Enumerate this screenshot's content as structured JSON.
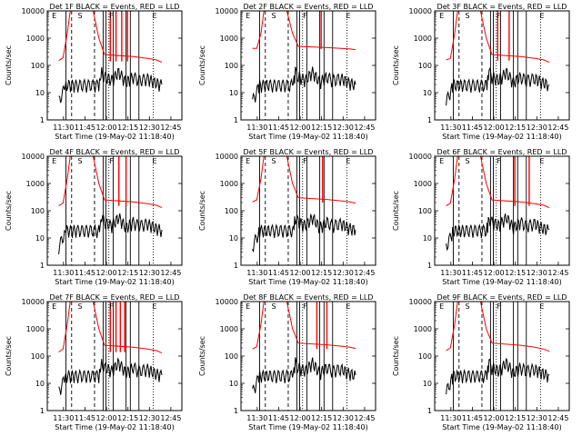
{
  "chart_data": [
    {
      "type": "line",
      "title": "Det 1F BLACK = Events, RED = LLD",
      "xlabel": "Start Time (19-May-02 11:18:40)",
      "ylabel": "Counts/sec",
      "yscale": "log",
      "ylim": [
        1,
        10000
      ],
      "ytick_labels": [
        "1",
        "10",
        "100",
        "1000",
        "10000"
      ],
      "xtick_labels": [
        "11:30",
        "11:45",
        "12:00",
        "12:15",
        "12:30",
        "12:45"
      ],
      "xlim_minutes": [
        0,
        94
      ],
      "annotations": [
        "E",
        "S",
        "F",
        "E"
      ],
      "series": [
        {
          "color": "#000000",
          "baseline": 20,
          "x": [
            8,
            12,
            13,
            20,
            36,
            37,
            38,
            40,
            45,
            50,
            55,
            60,
            64,
            70,
            75,
            80
          ],
          "values": [
            5,
            15,
            20,
            20,
            20,
            30,
            60,
            40,
            30,
            60,
            25,
            40,
            30,
            35,
            25,
            20
          ]
        },
        {
          "color": "#ff0000",
          "baseline": 140,
          "x": [
            8,
            11,
            14,
            16,
            18,
            25,
            32,
            36,
            40,
            60,
            70,
            76,
            80
          ],
          "values": [
            150,
            190,
            1500,
            10000,
            10000,
            10000,
            10000,
            1000,
            250,
            210,
            180,
            160,
            130
          ]
        }
      ],
      "red_spikes": [
        44,
        48,
        52,
        56
      ],
      "solid_lines": [
        13,
        39,
        41,
        46,
        55,
        58,
        64
      ],
      "dashed_lines": [
        17,
        33
      ],
      "dotted_lines": [
        43,
        74
      ]
    },
    {
      "type": "line",
      "title": "Det 2F BLACK = Events, RED = LLD",
      "xlabel": "Start Time (19-May-02 11:18:40)",
      "ylabel": "Counts/sec",
      "yscale": "log",
      "ylim": [
        1,
        10000
      ],
      "ytick_labels": [
        "1",
        "10",
        "100",
        "1000",
        "10000"
      ],
      "xtick_labels": [
        "11:30",
        "11:45",
        "12:00",
        "12:15",
        "12:30",
        "12:45"
      ],
      "xlim_minutes": [
        0,
        94
      ],
      "annotations": [
        "E",
        "S",
        "F",
        "E"
      ],
      "series": [
        {
          "color": "#000000",
          "baseline": 30,
          "x": [
            8,
            12,
            13,
            20,
            36,
            37,
            38,
            40,
            45,
            50,
            55,
            60,
            64,
            70,
            75,
            80
          ],
          "values": [
            5,
            15,
            20,
            20,
            20,
            30,
            60,
            40,
            30,
            60,
            25,
            40,
            30,
            35,
            25,
            20
          ]
        },
        {
          "color": "#ff0000",
          "baseline": 400,
          "x": [
            8,
            11,
            14,
            16,
            18,
            25,
            32,
            36,
            40,
            60,
            70,
            76,
            80
          ],
          "values": [
            420,
            420,
            1500,
            10000,
            10000,
            10000,
            10000,
            1500,
            500,
            450,
            420,
            400,
            380
          ]
        }
      ],
      "red_spikes": [
        56
      ],
      "solid_lines": [
        13,
        39,
        41,
        46,
        55,
        58,
        64
      ],
      "dashed_lines": [
        17,
        33
      ],
      "dotted_lines": [
        43,
        74
      ]
    },
    {
      "type": "line",
      "title": "Det 3F BLACK = Events, RED = LLD",
      "xlabel": "Start Time (19-May-02 11:18:40)",
      "ylabel": "Counts/sec",
      "yscale": "log",
      "ylim": [
        1,
        10000
      ],
      "ytick_labels": [
        "1",
        "10",
        "100",
        "1000",
        "10000"
      ],
      "xtick_labels": [
        "11:30",
        "11:45",
        "12:00",
        "12:15",
        "12:30",
        "12:45"
      ],
      "xlim_minutes": [
        0,
        94
      ],
      "annotations": [
        "E",
        "S",
        "F",
        "E"
      ],
      "series": [
        {
          "color": "#000000",
          "baseline": 30,
          "x": [
            8,
            12,
            13,
            20,
            36,
            37,
            38,
            40,
            45,
            50,
            55,
            60,
            64,
            70,
            75,
            80
          ],
          "values": [
            5,
            15,
            20,
            20,
            20,
            30,
            60,
            40,
            30,
            60,
            25,
            40,
            30,
            35,
            25,
            20
          ]
        },
        {
          "color": "#ff0000",
          "baseline": 150,
          "x": [
            8,
            11,
            14,
            16,
            18,
            25,
            32,
            36,
            40,
            60,
            70,
            76,
            80
          ],
          "values": [
            160,
            180,
            1500,
            10000,
            10000,
            10000,
            10000,
            1000,
            250,
            210,
            180,
            160,
            130
          ]
        }
      ],
      "red_spikes": [
        44,
        52
      ],
      "solid_lines": [
        13,
        39,
        41,
        46,
        55,
        58,
        64
      ],
      "dashed_lines": [
        17,
        33
      ],
      "dotted_lines": [
        43,
        74
      ]
    },
    {
      "type": "line",
      "title": "Det 4F BLACK = Events, RED = LLD",
      "xlabel": "Start Time (19-May-02 11:18:40)",
      "ylabel": "Counts/sec",
      "yscale": "log",
      "ylim": [
        1,
        10000
      ],
      "ytick_labels": [
        "1",
        "10",
        "100",
        "1000",
        "10000"
      ],
      "xtick_labels": [
        "11:30",
        "11:45",
        "12:00",
        "12:15",
        "12:30",
        "12:45"
      ],
      "xlim_minutes": [
        0,
        94
      ],
      "annotations": [
        "E",
        "S",
        "F",
        "E"
      ],
      "series": [
        {
          "color": "#000000",
          "baseline": 25,
          "x": [
            8,
            12,
            13,
            20,
            36,
            37,
            38,
            40,
            45,
            50,
            55,
            60,
            64,
            70,
            75,
            80
          ],
          "values": [
            5,
            15,
            20,
            20,
            20,
            30,
            60,
            40,
            30,
            60,
            25,
            40,
            30,
            35,
            25,
            20
          ]
        },
        {
          "color": "#ff0000",
          "baseline": 150,
          "x": [
            8,
            11,
            14,
            16,
            18,
            25,
            32,
            36,
            40,
            60,
            70,
            76,
            80
          ],
          "values": [
            150,
            190,
            1500,
            10000,
            10000,
            10000,
            10000,
            1000,
            250,
            210,
            180,
            160,
            130
          ]
        }
      ],
      "red_spikes": [
        50,
        55
      ],
      "solid_lines": [
        13,
        39,
        41,
        46,
        55,
        58,
        64
      ],
      "dashed_lines": [
        17,
        33
      ],
      "dotted_lines": [
        43,
        74
      ]
    },
    {
      "type": "line",
      "title": "Det 5F BLACK = Events, RED = LLD",
      "xlabel": "Start Time (19-May-02 11:18:40)",
      "ylabel": "Counts/sec",
      "yscale": "log",
      "ylim": [
        1,
        10000
      ],
      "ytick_labels": [
        "1",
        "10",
        "100",
        "1000",
        "10000"
      ],
      "xtick_labels": [
        "11:30",
        "11:45",
        "12:00",
        "12:15",
        "12:30",
        "12:45"
      ],
      "xlim_minutes": [
        0,
        94
      ],
      "annotations": [
        "E",
        "S",
        "F",
        "E"
      ],
      "series": [
        {
          "color": "#000000",
          "baseline": 25,
          "x": [
            8,
            12,
            13,
            20,
            36,
            37,
            38,
            40,
            45,
            50,
            55,
            60,
            64,
            70,
            75,
            80
          ],
          "values": [
            5,
            15,
            20,
            20,
            20,
            30,
            60,
            40,
            30,
            60,
            25,
            40,
            30,
            35,
            25,
            20
          ]
        },
        {
          "color": "#ff0000",
          "baseline": 200,
          "x": [
            8,
            11,
            14,
            16,
            18,
            25,
            32,
            36,
            40,
            60,
            70,
            76,
            80
          ],
          "values": [
            210,
            250,
            1500,
            10000,
            10000,
            10000,
            10000,
            1000,
            300,
            260,
            230,
            210,
            190
          ]
        }
      ],
      "red_spikes": [
        57
      ],
      "solid_lines": [
        13,
        39,
        41,
        46,
        55,
        58,
        64
      ],
      "dashed_lines": [
        17,
        33
      ],
      "dotted_lines": [
        43,
        74
      ]
    },
    {
      "type": "line",
      "title": "Det 6F BLACK = Events, RED = LLD",
      "xlabel": "Start Time (19-May-02 11:18:40)",
      "ylabel": "Counts/sec",
      "yscale": "log",
      "ylim": [
        1,
        10000
      ],
      "ytick_labels": [
        "1",
        "10",
        "100",
        "1000",
        "10000"
      ],
      "xtick_labels": [
        "11:30",
        "11:45",
        "12:00",
        "12:15",
        "12:30",
        "12:45"
      ],
      "xlim_minutes": [
        0,
        94
      ],
      "annotations": [
        "E",
        "S",
        "F",
        "E"
      ],
      "series": [
        {
          "color": "#000000",
          "baseline": 30,
          "x": [
            8,
            12,
            13,
            20,
            36,
            37,
            38,
            40,
            45,
            50,
            55,
            60,
            64,
            70,
            75,
            80
          ],
          "values": [
            5,
            15,
            20,
            20,
            20,
            30,
            60,
            40,
            30,
            60,
            25,
            40,
            30,
            35,
            25,
            20
          ]
        },
        {
          "color": "#ff0000",
          "baseline": 150,
          "x": [
            8,
            11,
            14,
            16,
            18,
            25,
            32,
            36,
            40,
            60,
            70,
            76,
            80
          ],
          "values": [
            150,
            190,
            1500,
            10000,
            10000,
            10000,
            10000,
            1000,
            250,
            210,
            180,
            160,
            130
          ]
        }
      ],
      "red_spikes": [
        56,
        66
      ],
      "solid_lines": [
        13,
        39,
        41,
        46,
        55,
        58,
        64
      ],
      "dashed_lines": [
        17,
        33
      ],
      "dotted_lines": [
        43,
        74
      ]
    },
    {
      "type": "line",
      "title": "Det 7F BLACK = Events, RED = LLD",
      "xlabel": "Start Time (19-May-02 11:18:40)",
      "ylabel": "Counts/sec",
      "yscale": "log",
      "ylim": [
        1,
        10000
      ],
      "ytick_labels": [
        "1",
        "10",
        "100",
        "1000",
        "10000"
      ],
      "xtick_labels": [
        "11:30",
        "11:45",
        "12:00",
        "12:15",
        "12:30",
        "12:45"
      ],
      "xlim_minutes": [
        0,
        94
      ],
      "annotations": [
        "E",
        "S",
        "F",
        "E"
      ],
      "series": [
        {
          "color": "#000000",
          "baseline": 25,
          "x": [
            8,
            12,
            13,
            20,
            36,
            37,
            38,
            40,
            45,
            50,
            55,
            60,
            64,
            70,
            75,
            80
          ],
          "values": [
            5,
            15,
            20,
            20,
            20,
            30,
            60,
            40,
            30,
            60,
            25,
            40,
            30,
            35,
            25,
            20
          ]
        },
        {
          "color": "#ff0000",
          "baseline": 140,
          "x": [
            8,
            11,
            14,
            16,
            18,
            25,
            32,
            36,
            40,
            60,
            70,
            76,
            80
          ],
          "values": [
            140,
            180,
            1500,
            10000,
            10000,
            10000,
            10000,
            1000,
            250,
            210,
            180,
            160,
            130
          ]
        }
      ],
      "red_spikes": [
        44,
        48,
        51,
        54
      ],
      "solid_lines": [
        13,
        39,
        41,
        46,
        55,
        58,
        64
      ],
      "dashed_lines": [
        17,
        33
      ],
      "dotted_lines": [
        43,
        74
      ]
    },
    {
      "type": "line",
      "title": "Det 8F BLACK = Events, RED = LLD",
      "xlabel": "Start Time (19-May-02 11:18:40)",
      "ylabel": "Counts/sec",
      "yscale": "log",
      "ylim": [
        1,
        10000
      ],
      "ytick_labels": [
        "1",
        "10",
        "100",
        "1000",
        "10000"
      ],
      "xtick_labels": [
        "11:30",
        "11:45",
        "12:00",
        "12:15",
        "12:30",
        "12:45"
      ],
      "xlim_minutes": [
        0,
        94
      ],
      "annotations": [
        "E",
        "S",
        "F",
        "E"
      ],
      "series": [
        {
          "color": "#000000",
          "baseline": 25,
          "x": [
            8,
            12,
            13,
            20,
            36,
            37,
            38,
            40,
            45,
            50,
            55,
            60,
            64,
            70,
            75,
            80
          ],
          "values": [
            5,
            15,
            20,
            20,
            20,
            30,
            60,
            40,
            30,
            60,
            25,
            40,
            30,
            35,
            25,
            20
          ]
        },
        {
          "color": "#ff0000",
          "baseline": 180,
          "x": [
            8,
            11,
            14,
            16,
            18,
            25,
            32,
            36,
            40,
            60,
            70,
            76,
            80
          ],
          "values": [
            180,
            220,
            1500,
            10000,
            10000,
            10000,
            10000,
            1000,
            300,
            260,
            230,
            210,
            190
          ]
        }
      ],
      "red_spikes": [
        53,
        60
      ],
      "solid_lines": [
        13,
        39,
        41,
        46,
        55,
        58,
        64
      ],
      "dashed_lines": [
        17,
        33
      ],
      "dotted_lines": [
        43,
        74
      ]
    },
    {
      "type": "line",
      "title": "Det 9F BLACK = Events, RED = LLD",
      "xlabel": "Start Time (19-May-02 11:18:40)",
      "ylabel": "Counts/sec",
      "yscale": "log",
      "ylim": [
        1,
        10000
      ],
      "ytick_labels": [
        "1",
        "10",
        "100",
        "1000",
        "10000"
      ],
      "xtick_labels": [
        "11:30",
        "11:45",
        "12:00",
        "12:15",
        "12:30",
        "12:45"
      ],
      "xlim_minutes": [
        0,
        94
      ],
      "annotations": [
        "E",
        "S",
        "F",
        "E"
      ],
      "series": [
        {
          "color": "#000000",
          "baseline": 25,
          "x": [
            8,
            12,
            13,
            20,
            36,
            37,
            38,
            40,
            45,
            50,
            55,
            60,
            64,
            70,
            75,
            80
          ],
          "values": [
            5,
            15,
            20,
            20,
            20,
            30,
            60,
            40,
            30,
            60,
            25,
            40,
            30,
            35,
            25,
            20
          ]
        },
        {
          "color": "#ff0000",
          "baseline": 160,
          "x": [
            8,
            11,
            14,
            16,
            18,
            25,
            32,
            36,
            40,
            60,
            70,
            76,
            80
          ],
          "values": [
            160,
            200,
            1500,
            10000,
            10000,
            10000,
            10000,
            1000,
            300,
            250,
            210,
            180,
            150
          ]
        }
      ],
      "red_spikes": [],
      "solid_lines": [
        13,
        39,
        41,
        46,
        55,
        58,
        64
      ],
      "dashed_lines": [
        17,
        33
      ],
      "dotted_lines": [
        43,
        74
      ]
    }
  ]
}
